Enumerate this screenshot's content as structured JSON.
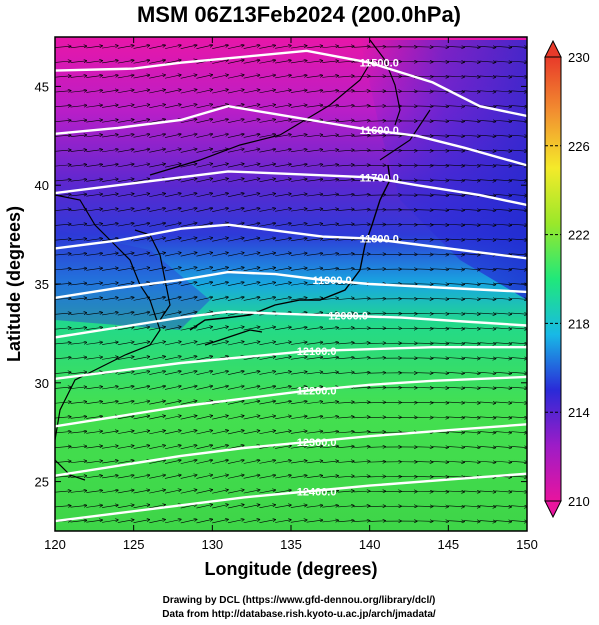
{
  "chart_data": {
    "type": "heatmap",
    "title": "MSM 06Z13Feb2024 (200.0hPa)",
    "xlabel": "Longitude (degrees)",
    "ylabel": "Latitude  (degrees)",
    "xlim": [
      120,
      150
    ],
    "ylim": [
      22.5,
      47.5
    ],
    "xticks": [
      120,
      125,
      130,
      135,
      140,
      145,
      150
    ],
    "yticks": [
      25,
      30,
      35,
      40,
      45
    ],
    "colorbar": {
      "range": [
        210,
        230
      ],
      "ticks": [
        210,
        214,
        218,
        222,
        226,
        230
      ],
      "stops": [
        "#e8149e",
        "#9d1cc7",
        "#2a2ad8",
        "#18b9e6",
        "#20e87a",
        "#9ae82a",
        "#f4ea2a",
        "#f29030",
        "#e83a2a"
      ]
    },
    "contours": [
      {
        "label": "11500.0",
        "points": [
          [
            120,
            45.8
          ],
          [
            125,
            45.9
          ],
          [
            128,
            46.2
          ],
          [
            132,
            46.5
          ],
          [
            136,
            46.8
          ],
          [
            140,
            46.2
          ],
          [
            144,
            45.2
          ],
          [
            147,
            44.0
          ],
          [
            150,
            43.5
          ]
        ]
      },
      {
        "label": "11600.0",
        "points": [
          [
            120,
            42.6
          ],
          [
            124,
            42.9
          ],
          [
            128,
            43.3
          ],
          [
            131,
            44.0
          ],
          [
            134,
            43.6
          ],
          [
            137,
            43.2
          ],
          [
            140,
            42.8
          ],
          [
            143,
            42.5
          ],
          [
            146,
            41.9
          ],
          [
            150,
            41.0
          ]
        ]
      },
      {
        "label": "11700.0",
        "points": [
          [
            120,
            39.6
          ],
          [
            124,
            40.0
          ],
          [
            128,
            40.4
          ],
          [
            131,
            40.7
          ],
          [
            134,
            40.6
          ],
          [
            137,
            40.5
          ],
          [
            140,
            40.4
          ],
          [
            143,
            40.0
          ],
          [
            147,
            39.5
          ],
          [
            150,
            39.0
          ]
        ]
      },
      {
        "label": "11800.0",
        "points": [
          [
            120,
            36.8
          ],
          [
            124,
            37.2
          ],
          [
            128,
            37.8
          ],
          [
            131,
            38.0
          ],
          [
            134,
            37.7
          ],
          [
            137,
            37.4
          ],
          [
            140,
            37.3
          ],
          [
            143,
            37.0
          ],
          [
            147,
            36.6
          ],
          [
            150,
            36.3
          ]
        ]
      },
      {
        "label": "11900.0",
        "points": [
          [
            120,
            34.3
          ],
          [
            124,
            34.8
          ],
          [
            128,
            35.2
          ],
          [
            131,
            35.6
          ],
          [
            134,
            35.5
          ],
          [
            137,
            35.2
          ],
          [
            140,
            35.0
          ],
          [
            145,
            34.8
          ],
          [
            150,
            34.6
          ]
        ]
      },
      {
        "label": "12000.0",
        "points": [
          [
            120,
            32.3
          ],
          [
            124,
            32.8
          ],
          [
            128,
            33.3
          ],
          [
            131,
            33.6
          ],
          [
            134,
            33.5
          ],
          [
            138,
            33.4
          ],
          [
            142,
            33.3
          ],
          [
            146,
            33.1
          ],
          [
            150,
            32.9
          ]
        ]
      },
      {
        "label": "12100.0",
        "points": [
          [
            120,
            30.2
          ],
          [
            124,
            30.6
          ],
          [
            128,
            31.0
          ],
          [
            132,
            31.3
          ],
          [
            136,
            31.6
          ],
          [
            140,
            31.7
          ],
          [
            144,
            31.8
          ],
          [
            150,
            31.8
          ]
        ]
      },
      {
        "label": "12200.0",
        "points": [
          [
            120,
            27.8
          ],
          [
            124,
            28.3
          ],
          [
            128,
            28.8
          ],
          [
            132,
            29.2
          ],
          [
            136,
            29.6
          ],
          [
            140,
            29.9
          ],
          [
            144,
            30.1
          ],
          [
            150,
            30.3
          ]
        ]
      },
      {
        "label": "12300.0",
        "points": [
          [
            120,
            25.3
          ],
          [
            124,
            25.8
          ],
          [
            128,
            26.3
          ],
          [
            132,
            26.7
          ],
          [
            136,
            27.0
          ],
          [
            140,
            27.3
          ],
          [
            145,
            27.6
          ],
          [
            150,
            27.9
          ]
        ]
      },
      {
        "label": "12400.0",
        "points": [
          [
            120,
            23.0
          ],
          [
            124,
            23.4
          ],
          [
            128,
            23.8
          ],
          [
            132,
            24.2
          ],
          [
            136,
            24.5
          ],
          [
            140,
            24.8
          ],
          [
            145,
            25.1
          ],
          [
            150,
            25.4
          ]
        ]
      }
    ],
    "wind": "uniform westerly flow"
  },
  "credits": {
    "line1": "Drawing by DCL (https://www.gfd-dennou.org/library/dcl/)",
    "line2": "Data from http://database.rish.kyoto-u.ac.jp/arch/jmadata/"
  }
}
